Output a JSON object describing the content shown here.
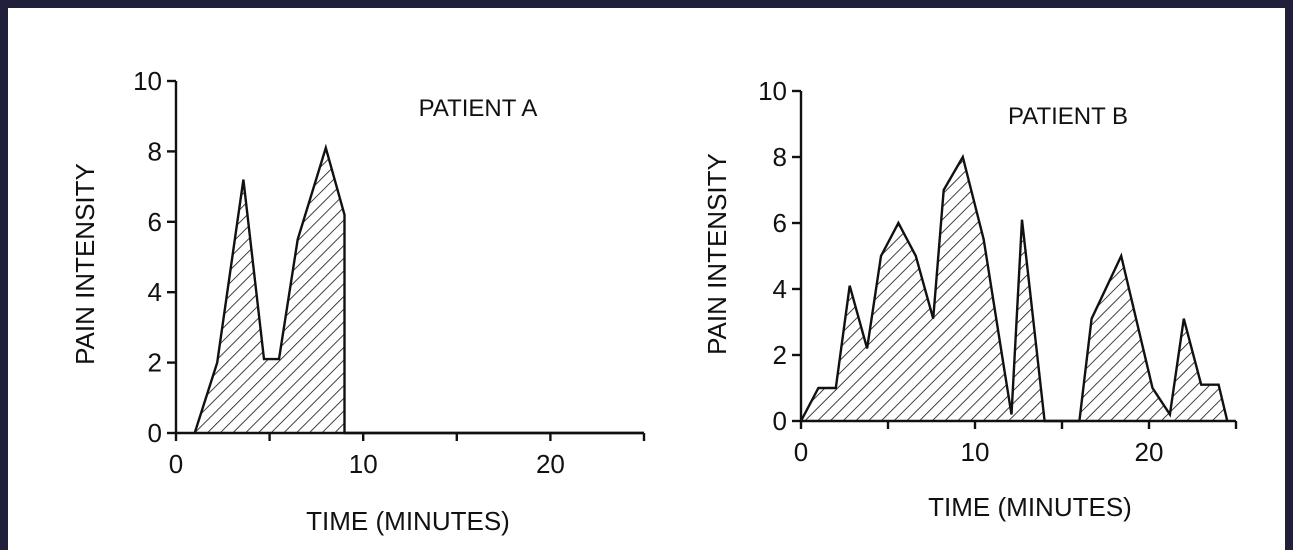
{
  "colors": {
    "background": "#20203a",
    "paper": "#ffffff",
    "ink": "#111111"
  },
  "chart_data": [
    {
      "type": "area",
      "title": "PATIENT A",
      "xlabel": "TIME (MINUTES)",
      "ylabel": "PAIN INTENSITY",
      "xlim": [
        0,
        25
      ],
      "ylim": [
        0,
        10
      ],
      "xticks": [
        0,
        10,
        20
      ],
      "yticks": [
        0,
        2,
        4,
        6,
        8,
        10
      ],
      "fill": "hatched",
      "x": [
        1,
        2.2,
        3.6,
        4.7,
        5.5,
        6.5,
        8,
        9,
        9,
        25
      ],
      "y": [
        0,
        2,
        7.2,
        2.1,
        2.1,
        5.5,
        8.1,
        6.2,
        0,
        0
      ]
    },
    {
      "type": "area",
      "title": "PATIENT B",
      "xlabel": "TIME (MINUTES)",
      "ylabel": "PAIN INTENSITY",
      "xlim": [
        0,
        25
      ],
      "ylim": [
        0,
        10
      ],
      "xticks": [
        0,
        10,
        20
      ],
      "yticks": [
        0,
        2,
        4,
        6,
        8,
        10
      ],
      "fill": "hatched",
      "x": [
        0,
        1,
        2,
        2.8,
        3.8,
        4.6,
        5.6,
        6.6,
        7.6,
        8.2,
        9.3,
        10.5,
        11.7,
        12.1,
        12.7,
        14,
        16,
        16.7,
        18.4,
        20.2,
        21.2,
        22,
        23,
        24,
        24.5
      ],
      "y": [
        0,
        1,
        1,
        4.1,
        2.2,
        5,
        6,
        5,
        3.1,
        7,
        8,
        5.5,
        1.5,
        0.2,
        6.1,
        0,
        0,
        3.1,
        5,
        1,
        0.2,
        3.1,
        1.1,
        1.1,
        0
      ]
    }
  ]
}
